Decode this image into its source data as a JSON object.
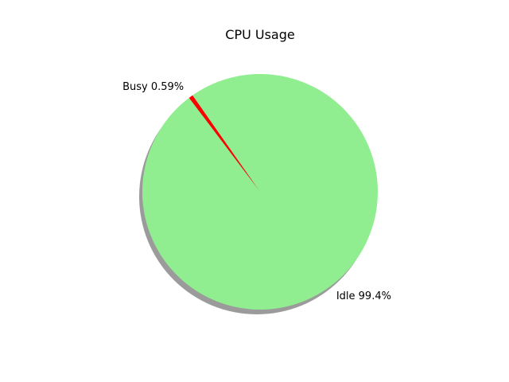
{
  "chart_data": {
    "type": "pie",
    "title": "CPU Usage",
    "slices": [
      {
        "label": "Busy",
        "value": 0.59,
        "display": "Busy 0.59%",
        "color": "#ff0000"
      },
      {
        "label": "Idle",
        "value": 99.4,
        "display": "Idle 99.4%",
        "color": "#90ee90"
      }
    ],
    "start_angle_deg": 125,
    "shadow": true,
    "legend": "none"
  }
}
